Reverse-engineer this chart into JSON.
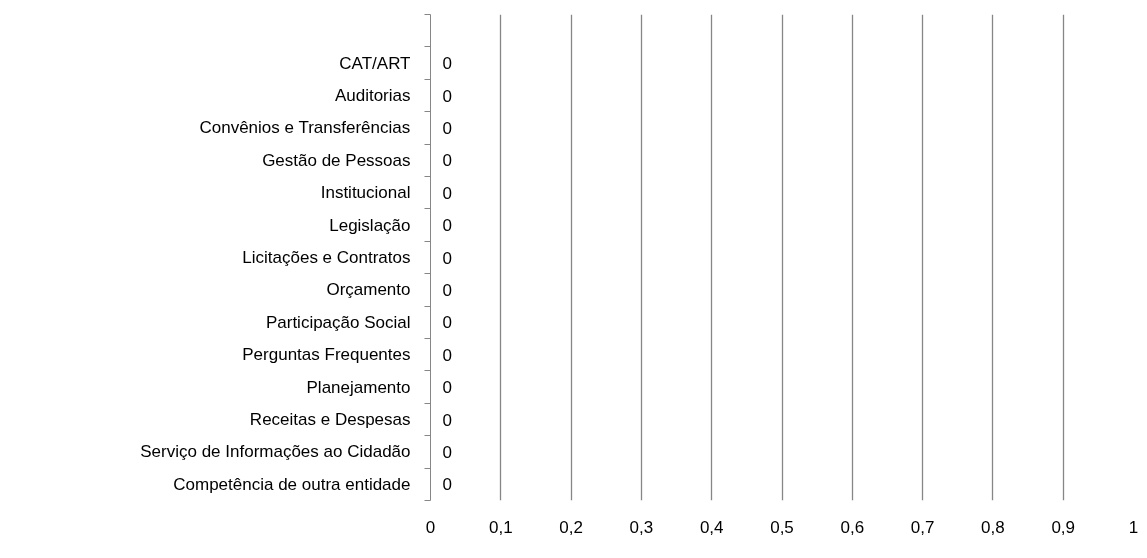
{
  "chart_data": {
    "type": "bar",
    "orientation": "horizontal",
    "categories": [
      null,
      "CAT/ART",
      "Auditorias",
      "Convênios e Transferências",
      "Gestão de Pessoas",
      "Institucional",
      "Legislação",
      "Licitações e Contratos",
      "Orçamento",
      "Participação Social",
      "Perguntas Frequentes",
      "Planejamento",
      "Receitas e Despesas",
      "Serviço de Informações ao Cidadão",
      "Competência de outra entidade"
    ],
    "values": [
      null,
      0,
      0,
      0,
      0,
      0,
      0,
      0,
      0,
      0,
      0,
      0,
      0,
      0,
      0
    ],
    "data_labels": true,
    "grid": "x",
    "xlim": [
      0,
      1
    ],
    "xticks": [
      0,
      {
        "value": 0.1,
        "label": "0,1"
      },
      {
        "value": 0.2,
        "label": "0,2"
      },
      {
        "value": 0.3,
        "label": "0,3"
      },
      {
        "value": 0.4,
        "label": "0,4"
      },
      {
        "value": 0.5,
        "label": "0,5"
      },
      {
        "value": 0.6,
        "label": "0,6"
      },
      {
        "value": 0.7,
        "label": "0,7"
      },
      {
        "value": 0.8,
        "label": "0,8"
      },
      {
        "value": 0.9,
        "label": "0,9"
      },
      1
    ]
  }
}
